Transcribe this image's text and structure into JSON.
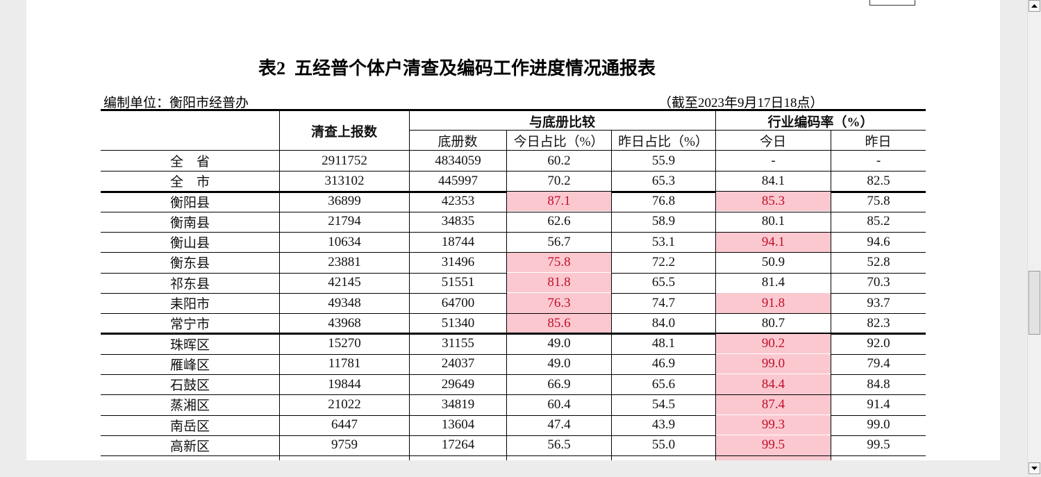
{
  "header": {
    "title": "表2  五经普个体户清查及编码工作进度情况通报表",
    "unit": "编制单位：衡阳市经普办",
    "date": "（截至2023年9月17日18点）"
  },
  "table": {
    "head": {
      "reported": "清查上报数",
      "compare": "与底册比较",
      "register": "底册数",
      "today_ratio": "今日占比（%）",
      "yesterday_ratio": "昨日占比（%）",
      "coding": "行业编码率（%）",
      "today": "今日",
      "yesterday": "昨日"
    },
    "groups": [
      {
        "rows": [
          {
            "cells": [
              "全　省",
              "2911752",
              "4834059",
              "60.2",
              "55.9",
              "-",
              "-"
            ],
            "highlight": []
          },
          {
            "cells": [
              "全　市",
              "313102",
              "445997",
              "70.2",
              "65.3",
              "84.1",
              "82.5"
            ],
            "highlight": []
          }
        ]
      },
      {
        "rows": [
          {
            "cells": [
              "衡阳县",
              "36899",
              "42353",
              "87.1",
              "76.8",
              "85.3",
              "75.8"
            ],
            "highlight": [
              3,
              5
            ]
          },
          {
            "cells": [
              "衡南县",
              "21794",
              "34835",
              "62.6",
              "58.9",
              "80.1",
              "85.2"
            ],
            "highlight": []
          },
          {
            "cells": [
              "衡山县",
              "10634",
              "18744",
              "56.7",
              "53.1",
              "94.1",
              "94.6"
            ],
            "highlight": [
              5
            ]
          },
          {
            "cells": [
              "衡东县",
              "23881",
              "31496",
              "75.8",
              "72.2",
              "50.9",
              "52.8"
            ],
            "highlight": [
              3
            ]
          },
          {
            "cells": [
              "祁东县",
              "42145",
              "51551",
              "81.8",
              "65.5",
              "81.4",
              "70.3"
            ],
            "highlight": [
              3
            ]
          },
          {
            "cells": [
              "耒阳市",
              "49348",
              "64700",
              "76.3",
              "74.7",
              "91.8",
              "93.7"
            ],
            "highlight": [
              3,
              5
            ]
          },
          {
            "cells": [
              "常宁市",
              "43968",
              "51340",
              "85.6",
              "84.0",
              "80.7",
              "82.3"
            ],
            "highlight": [
              3
            ]
          }
        ]
      },
      {
        "rows": [
          {
            "cells": [
              "珠晖区",
              "15270",
              "31155",
              "49.0",
              "48.1",
              "90.2",
              "92.0"
            ],
            "highlight": [
              5
            ]
          },
          {
            "cells": [
              "雁峰区",
              "11781",
              "24037",
              "49.0",
              "46.9",
              "99.0",
              "79.4"
            ],
            "highlight": [
              5
            ]
          },
          {
            "cells": [
              "石鼓区",
              "19844",
              "29649",
              "66.9",
              "65.6",
              "84.4",
              "84.8"
            ],
            "highlight": [
              5
            ]
          },
          {
            "cells": [
              "蒸湘区",
              "21022",
              "34819",
              "60.4",
              "54.5",
              "87.4",
              "91.4"
            ],
            "highlight": [
              5
            ]
          },
          {
            "cells": [
              "南岳区",
              "6447",
              "13604",
              "47.4",
              "43.9",
              "99.3",
              "99.0"
            ],
            "highlight": [
              5
            ]
          },
          {
            "cells": [
              "高新区",
              "9759",
              "17264",
              "56.5",
              "55.0",
              "99.5",
              "99.5"
            ],
            "highlight": [
              5
            ]
          }
        ]
      }
    ]
  }
}
